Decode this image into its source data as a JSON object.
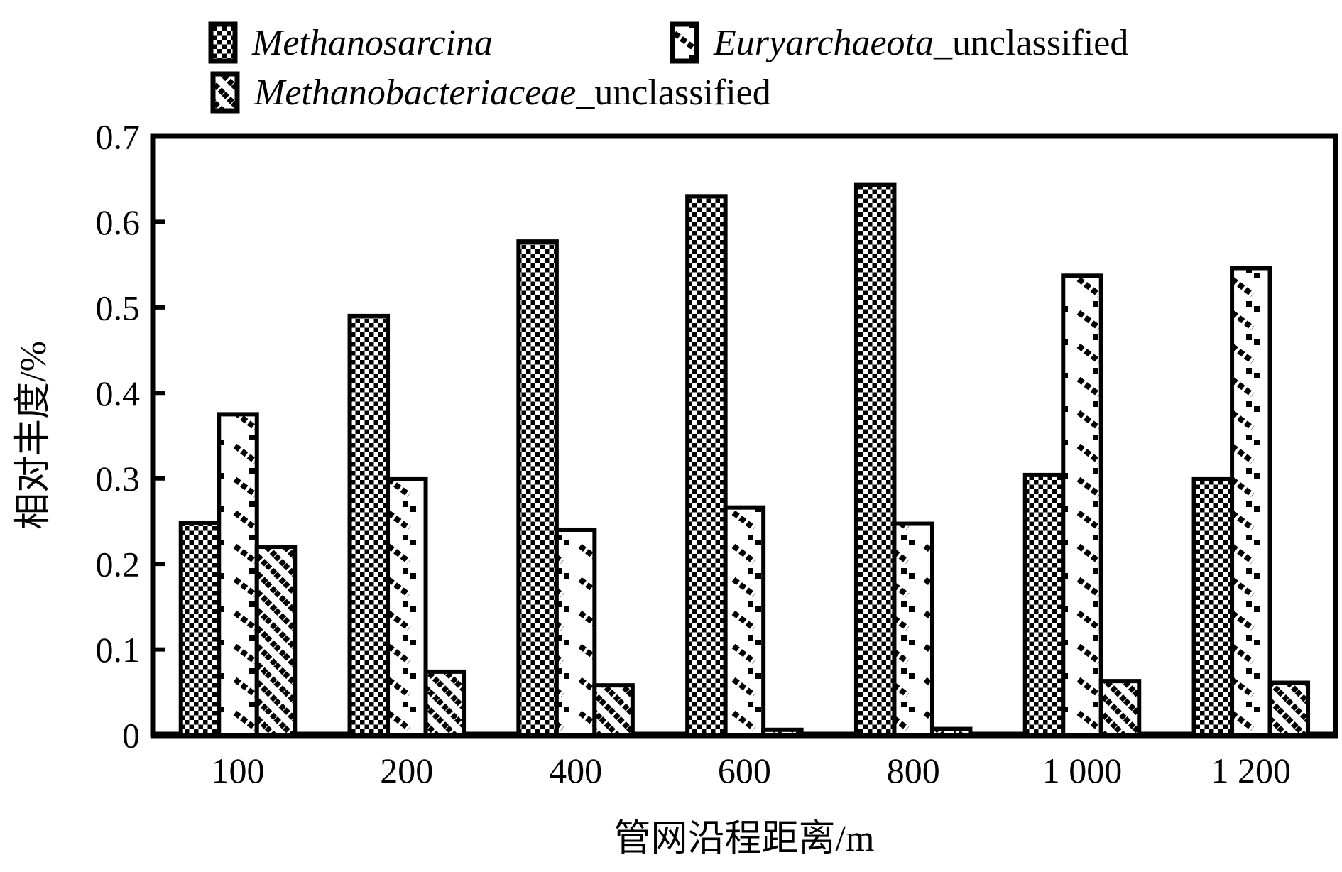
{
  "chart_data": {
    "type": "bar",
    "title": "",
    "xlabel": "管网沿程距离/m",
    "ylabel": "相对丰度/%",
    "categories": [
      "100",
      "200",
      "400",
      "600",
      "800",
      "1 000",
      "1 200"
    ],
    "series": [
      {
        "name_italic": "Methanosarcina",
        "name_suffix": "",
        "pattern": "checker",
        "values": [
          0.248,
          0.49,
          0.577,
          0.63,
          0.643,
          0.304,
          0.299
        ]
      },
      {
        "name_italic": "Euryarchaeota",
        "name_suffix": "_unclassified",
        "pattern": "sparse-diagonal",
        "values": [
          0.375,
          0.299,
          0.24,
          0.266,
          0.247,
          0.537,
          0.546
        ]
      },
      {
        "name_italic": "Methanobacteriaceae",
        "name_suffix": "_unclassified",
        "pattern": "dense-diagonal",
        "values": [
          0.22,
          0.074,
          0.058,
          0.006,
          0.007,
          0.063,
          0.061
        ]
      }
    ],
    "ylim": [
      0,
      0.7
    ],
    "yticks": [
      0,
      0.1,
      0.2,
      0.3,
      0.4,
      0.5,
      0.6,
      0.7
    ],
    "ytick_labels": [
      "0",
      "0.1",
      "0.2",
      "0.3",
      "0.4",
      "0.5",
      "0.6",
      "0.7"
    ],
    "grid": false,
    "legend_position": "top",
    "bar_fill": "#ffffff",
    "ink_color": "#000000"
  }
}
